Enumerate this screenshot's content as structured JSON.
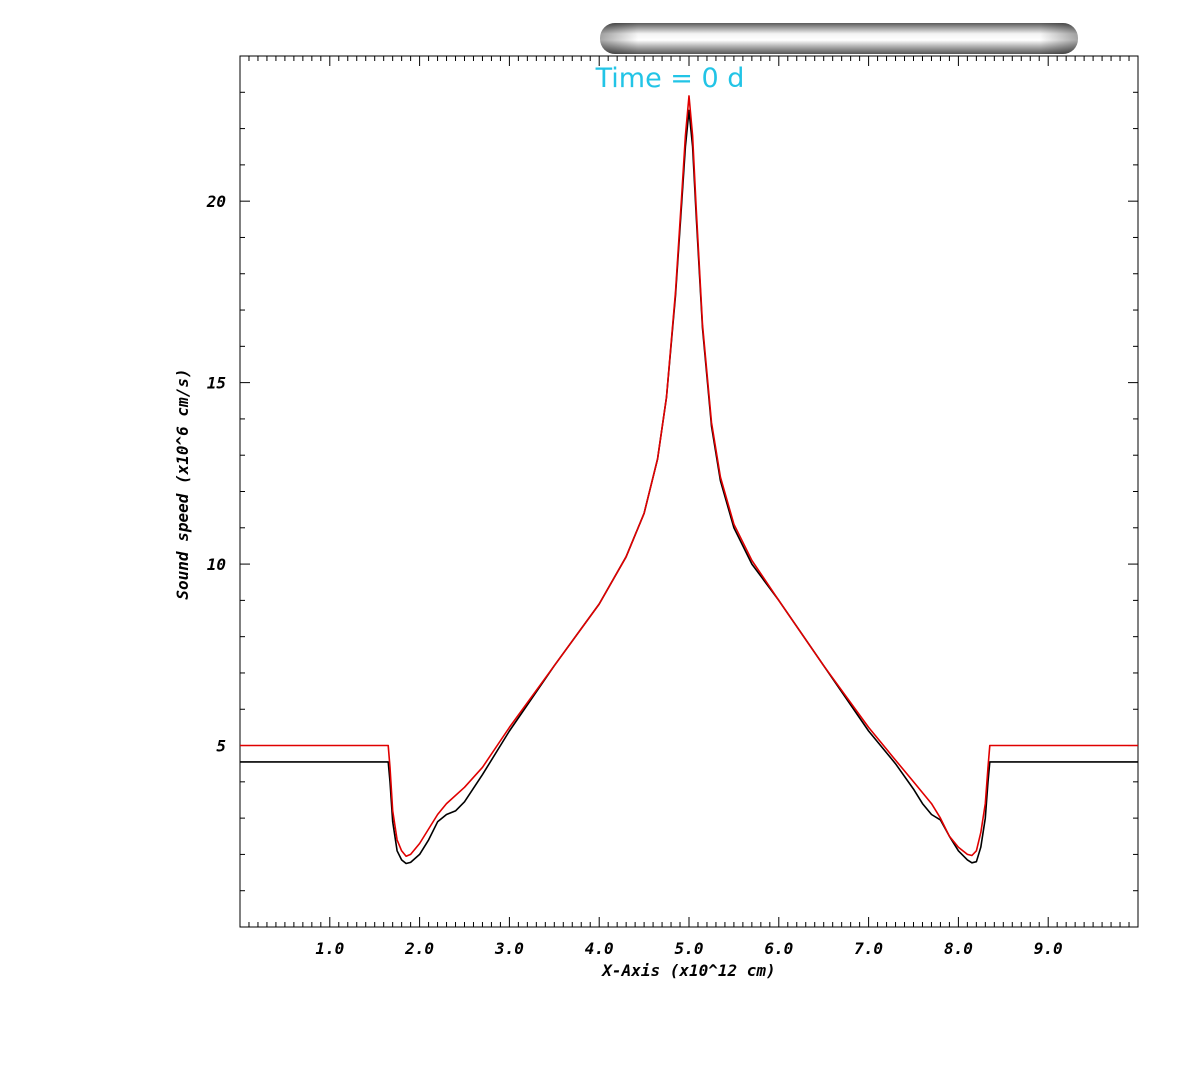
{
  "title": "Time = 0 d",
  "colors": {
    "title": "#22c4e6",
    "series_red": "#e00000",
    "series_black": "#000000",
    "progress_bar": "silver-gradient"
  },
  "progress_bar": {
    "fill_fraction": 1.0
  },
  "chart_data": {
    "type": "line",
    "xlabel": "X-Axis (x10^12 cm)",
    "ylabel": "Sound speed (x10^6 cm/s)",
    "xlim": [
      0.0,
      10.0
    ],
    "ylim": [
      0.0,
      24.0
    ],
    "x_ticks": [
      1.0,
      2.0,
      3.0,
      4.0,
      5.0,
      6.0,
      7.0,
      8.0,
      9.0
    ],
    "x_tick_labels": [
      "1.0",
      "2.0",
      "3.0",
      "4.0",
      "5.0",
      "6.0",
      "7.0",
      "8.0",
      "9.0"
    ],
    "y_ticks": [
      5,
      10,
      15,
      20
    ],
    "y_tick_labels": [
      "5",
      "10",
      "15",
      "20"
    ],
    "grid": false,
    "legend": "none",
    "series": [
      {
        "color": "#e00000",
        "x": [
          0.0,
          1.65,
          1.67,
          1.7,
          1.75,
          1.8,
          1.85,
          1.9,
          2.0,
          2.1,
          2.2,
          2.3,
          2.5,
          2.7,
          3.0,
          3.5,
          4.0,
          4.3,
          4.5,
          4.65,
          4.75,
          4.85,
          4.92,
          4.96,
          5.0,
          5.04,
          5.08,
          5.15,
          5.25,
          5.35,
          5.5,
          5.7,
          6.0,
          6.5,
          7.0,
          7.3,
          7.5,
          7.7,
          7.8,
          7.9,
          8.0,
          8.1,
          8.15,
          8.2,
          8.25,
          8.3,
          8.33,
          8.35,
          10.0
        ],
        "y": [
          5.0,
          5.0,
          4.4,
          3.2,
          2.4,
          2.1,
          1.95,
          2.0,
          2.3,
          2.7,
          3.1,
          3.4,
          3.85,
          4.4,
          5.5,
          7.2,
          8.9,
          10.2,
          11.4,
          12.9,
          14.6,
          17.5,
          20.2,
          21.8,
          22.9,
          21.8,
          19.8,
          16.6,
          13.9,
          12.4,
          11.1,
          10.1,
          9.0,
          7.2,
          5.5,
          4.6,
          4.0,
          3.4,
          3.0,
          2.5,
          2.2,
          2.0,
          1.97,
          2.1,
          2.6,
          3.4,
          4.4,
          5.0,
          5.0
        ]
      },
      {
        "color": "#000000",
        "x": [
          0.0,
          1.65,
          1.67,
          1.7,
          1.75,
          1.8,
          1.85,
          1.9,
          2.0,
          2.1,
          2.2,
          2.3,
          2.4,
          2.5,
          2.7,
          3.0,
          3.5,
          4.0,
          4.3,
          4.5,
          4.65,
          4.75,
          4.85,
          4.92,
          4.96,
          5.0,
          5.04,
          5.08,
          5.15,
          5.25,
          5.35,
          5.5,
          5.7,
          6.0,
          6.5,
          7.0,
          7.3,
          7.5,
          7.6,
          7.7,
          7.8,
          7.9,
          8.0,
          8.1,
          8.15,
          8.2,
          8.25,
          8.3,
          8.33,
          8.35,
          10.0
        ],
        "y": [
          4.55,
          4.55,
          4.0,
          2.9,
          2.1,
          1.85,
          1.75,
          1.78,
          2.0,
          2.4,
          2.9,
          3.1,
          3.2,
          3.45,
          4.2,
          5.4,
          7.2,
          8.9,
          10.2,
          11.4,
          12.9,
          14.6,
          17.4,
          20.0,
          21.5,
          22.5,
          21.5,
          19.6,
          16.5,
          13.8,
          12.3,
          11.0,
          10.0,
          9.0,
          7.2,
          5.4,
          4.5,
          3.8,
          3.4,
          3.1,
          2.95,
          2.5,
          2.1,
          1.85,
          1.77,
          1.8,
          2.2,
          3.0,
          4.0,
          4.55,
          4.55
        ]
      }
    ]
  }
}
